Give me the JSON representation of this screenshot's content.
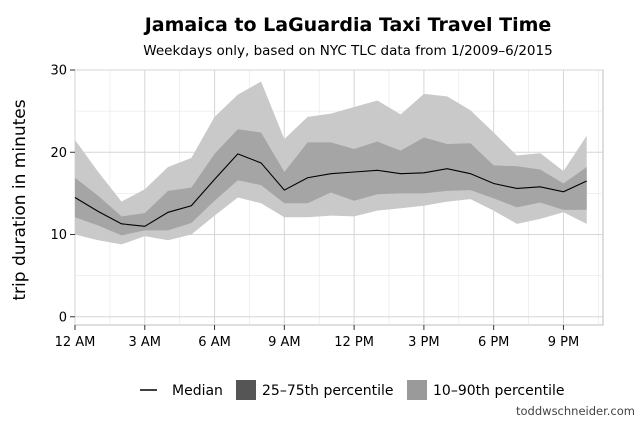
{
  "chart_data": {
    "type": "area",
    "title": "Jamaica to LaGuardia Taxi Travel Time",
    "subtitle": "Weekdays only, based on NYC TLC data from 1/2009–6/2015",
    "ylabel": "trip duration in minutes",
    "xlabel": "",
    "x": [
      0,
      1,
      2,
      3,
      4,
      5,
      6,
      7,
      8,
      9,
      10,
      11,
      12,
      13,
      14,
      15,
      16,
      17,
      18,
      19,
      20,
      21,
      22
    ],
    "xlim": [
      0,
      22.7
    ],
    "ylim": [
      -1,
      30
    ],
    "x_ticks": [
      {
        "value": 0,
        "label": "12 AM"
      },
      {
        "value": 3,
        "label": "3 AM"
      },
      {
        "value": 6,
        "label": "6 AM"
      },
      {
        "value": 9,
        "label": "9 AM"
      },
      {
        "value": 12,
        "label": "12 PM"
      },
      {
        "value": 15,
        "label": "3 PM"
      },
      {
        "value": 18,
        "label": "6 PM"
      },
      {
        "value": 21,
        "label": "9 PM"
      }
    ],
    "y_ticks": [
      0,
      10,
      20,
      30
    ],
    "grid": true,
    "legend_position": "bottom",
    "series": [
      {
        "name": "Median",
        "values": [
          14.5,
          12.8,
          11.3,
          11.0,
          12.7,
          13.5,
          16.7,
          19.8,
          18.7,
          15.4,
          16.9,
          17.4,
          17.6,
          17.8,
          17.4,
          17.5,
          18.0,
          17.4,
          16.2,
          15.6,
          15.8,
          15.2,
          16.5
        ]
      },
      {
        "name": "25–75th percentile",
        "lower": [
          12.1,
          11.1,
          9.9,
          10.5,
          10.5,
          11.4,
          14.1,
          16.6,
          16.0,
          13.8,
          13.8,
          15.1,
          14.1,
          14.9,
          15.0,
          15.0,
          15.3,
          15.4,
          14.4,
          13.3,
          13.9,
          13.0,
          13.0
        ],
        "upper": [
          16.9,
          14.7,
          12.2,
          12.6,
          15.3,
          15.7,
          19.8,
          22.8,
          22.4,
          17.6,
          21.2,
          21.2,
          20.4,
          21.3,
          20.2,
          21.8,
          21.0,
          21.1,
          18.4,
          18.3,
          17.9,
          16.2,
          18.2
        ]
      },
      {
        "name": "10–90th percentile",
        "lower": [
          10.0,
          9.3,
          8.8,
          9.8,
          9.3,
          10.0,
          12.3,
          14.5,
          13.8,
          12.1,
          12.1,
          12.3,
          12.2,
          12.9,
          13.2,
          13.5,
          14.0,
          14.3,
          12.9,
          11.3,
          11.9,
          12.7,
          11.3
        ],
        "upper": [
          21.5,
          17.6,
          14.0,
          15.5,
          18.2,
          19.3,
          24.3,
          27.0,
          28.6,
          21.6,
          24.3,
          24.7,
          25.5,
          26.3,
          24.6,
          27.1,
          26.8,
          25.1,
          22.4,
          19.6,
          19.9,
          17.7,
          22.0
        ]
      }
    ],
    "colors": {
      "band_outer": "#c9c9c9",
      "band_inner": "#a5a5a5",
      "median_line": "#000000",
      "legend_band_inner": "#555555",
      "legend_band_outer": "#9a9a9a",
      "grid_major": "#d6d6d6",
      "grid_minor": "#ebebeb"
    }
  },
  "credit": "toddwschneider.com"
}
